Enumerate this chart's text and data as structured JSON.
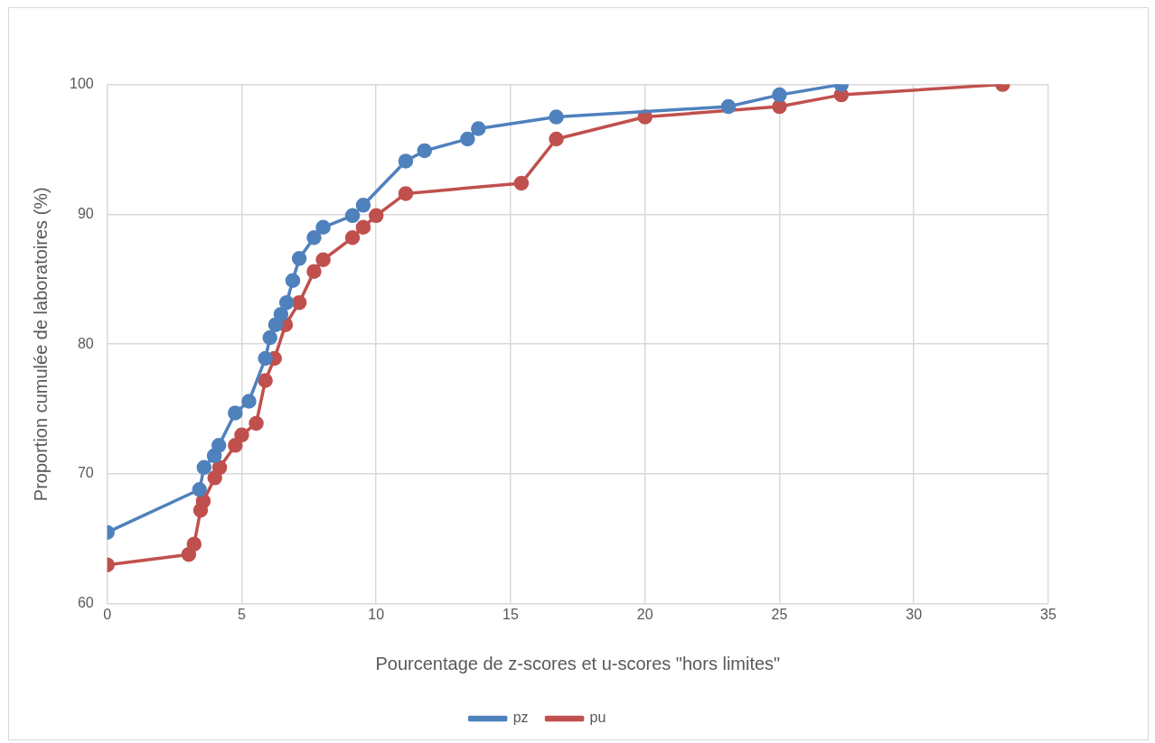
{
  "chart_data": {
    "type": "line",
    "xlabel": "Pourcentage de z-scores et u-scores \"hors limites\"",
    "ylabel": "Proportion cumulée de laboratoires (%)",
    "xlim": [
      0,
      35
    ],
    "xticks": [
      0,
      5,
      10,
      15,
      20,
      25,
      30,
      35
    ],
    "ylim": [
      60,
      100
    ],
    "yticks": [
      60,
      70,
      80,
      90,
      100
    ],
    "grid": true,
    "legend": "bottom",
    "marker": "circle",
    "line_style": "solid",
    "series": [
      {
        "name": "pz",
        "color": "#4f81bd",
        "x": [
          0,
          3.43,
          3.6,
          3.98,
          4.15,
          4.76,
          5.27,
          5.88,
          6.05,
          6.26,
          6.46,
          6.67,
          6.9,
          7.14,
          7.69,
          8.03,
          9.12,
          9.52,
          11.1,
          11.8,
          13.4,
          13.8,
          16.7,
          23.1,
          25.0,
          27.3
        ],
        "values": [
          65.5,
          68.8,
          70.5,
          71.4,
          72.2,
          74.7,
          75.6,
          78.9,
          80.5,
          81.5,
          82.3,
          83.2,
          84.9,
          86.6,
          88.2,
          89.0,
          89.9,
          90.7,
          94.1,
          94.9,
          95.8,
          96.6,
          97.5,
          98.3,
          99.2,
          100
        ]
      },
      {
        "name": "pu",
        "color": "#c0504d",
        "x": [
          0,
          3.03,
          3.23,
          3.47,
          3.57,
          4.0,
          4.18,
          4.76,
          5.0,
          5.54,
          5.88,
          6.22,
          6.63,
          7.14,
          7.69,
          8.03,
          9.12,
          9.52,
          10.0,
          11.1,
          15.4,
          16.7,
          20.0,
          25.0,
          27.3,
          33.3
        ],
        "values": [
          63.0,
          63.8,
          64.6,
          67.2,
          67.9,
          69.7,
          70.5,
          72.2,
          73.0,
          73.9,
          77.2,
          78.9,
          81.5,
          83.2,
          85.6,
          86.5,
          88.2,
          89.0,
          89.9,
          91.6,
          92.4,
          95.8,
          97.5,
          98.3,
          99.2,
          100
        ]
      }
    ]
  }
}
